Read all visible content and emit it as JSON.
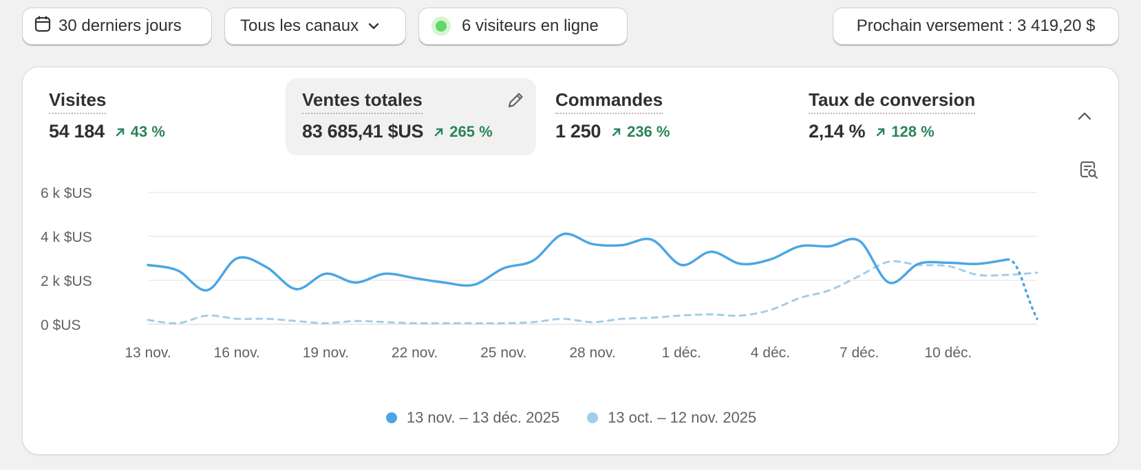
{
  "toolbar": {
    "date_range": "30 derniers jours",
    "channels": "Tous les canaux",
    "visitors": "6 visiteurs en ligne",
    "payout": "Prochain versement : 3 419,20 $"
  },
  "metrics": [
    {
      "title": "Visites",
      "value": "54 184",
      "delta": "43 %"
    },
    {
      "title": "Ventes totales",
      "value": "83 685,41 $US",
      "delta": "265 %",
      "active": true
    },
    {
      "title": "Commandes",
      "value": "1 250",
      "delta": "236 %"
    },
    {
      "title": "Taux de conversion",
      "value": "2,14 %",
      "delta": "128 %"
    }
  ],
  "icons": {
    "calendar": "calendar-icon",
    "chevron": "chevron-down-icon",
    "online": "online-status-icon",
    "edit": "pencil-icon",
    "collapse": "chevron-up-icon",
    "report": "report-search-icon",
    "trend": "arrow-up-right-icon"
  },
  "colors": {
    "current_series": "#4ba6e3",
    "previous_series": "#a3cde9",
    "positive": "#29845a",
    "online_dot": "#5fd96a"
  },
  "chart_data": {
    "type": "line",
    "y_ticks": [
      "0 $US",
      "2 k $US",
      "4 k $US",
      "6 k $US"
    ],
    "ylim": [
      0,
      6000
    ],
    "x_tick_labels": [
      "13 nov.",
      "16 nov.",
      "19 nov.",
      "22 nov.",
      "25 nov.",
      "28 nov.",
      "1 déc.",
      "4 déc.",
      "7 déc.",
      "10 déc."
    ],
    "grid": true,
    "legend_position": "bottom-center",
    "series": [
      {
        "name": "13 nov. – 13 déc. 2025",
        "style": "solid",
        "x": [
          "13 nov.",
          "14 nov.",
          "15 nov.",
          "16 nov.",
          "17 nov.",
          "18 nov.",
          "19 nov.",
          "20 nov.",
          "21 nov.",
          "22 nov.",
          "23 nov.",
          "24 nov.",
          "25 nov.",
          "26 nov.",
          "27 nov.",
          "28 nov.",
          "29 nov.",
          "30 nov.",
          "1 déc.",
          "2 déc.",
          "3 déc.",
          "4 déc.",
          "5 déc.",
          "6 déc.",
          "7 déc.",
          "8 déc.",
          "9 déc.",
          "10 déc.",
          "11 déc.",
          "12 déc.",
          "13 déc."
        ],
        "values": [
          2700,
          2450,
          1550,
          3000,
          2600,
          1600,
          2300,
          1900,
          2300,
          2100,
          1900,
          1800,
          2550,
          2900,
          4100,
          3650,
          3600,
          3850,
          2700,
          3300,
          2750,
          2950,
          3550,
          3550,
          3800,
          1900,
          2750,
          2800,
          2750,
          2950,
          250
        ]
      },
      {
        "name": "13 oct. – 12 nov. 2025",
        "style": "dashed",
        "values": [
          200,
          50,
          400,
          250,
          250,
          150,
          50,
          150,
          100,
          50,
          50,
          50,
          50,
          100,
          250,
          100,
          250,
          300,
          400,
          450,
          400,
          650,
          1200,
          1550,
          2200,
          2850,
          2700,
          2650,
          2250,
          2250,
          2350
        ]
      }
    ]
  }
}
